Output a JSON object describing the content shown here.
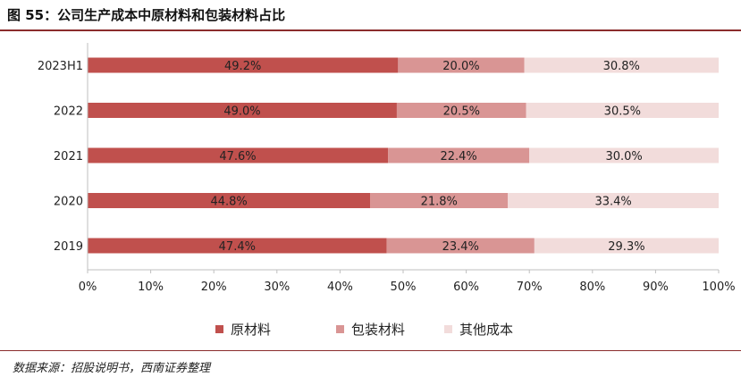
{
  "header": {
    "title": "图 55：公司生产成本中原材料和包装材料占比"
  },
  "footer": {
    "source": "数据来源：招股说明书，西南证券整理"
  },
  "chart_data": {
    "type": "bar",
    "orientation": "horizontal",
    "stacked": true,
    "categories": [
      "2023H1",
      "2022",
      "2021",
      "2020",
      "2019"
    ],
    "series": [
      {
        "name": "原材料",
        "values": [
          49.2,
          49.0,
          47.6,
          44.8,
          47.4
        ],
        "labels": [
          "49.2%",
          "49.0%",
          "47.6%",
          "44.8%",
          "47.4%"
        ],
        "color": "#C0504D"
      },
      {
        "name": "包装材料",
        "values": [
          20.0,
          20.5,
          22.4,
          21.8,
          23.4
        ],
        "labels": [
          "20.0%",
          "20.5%",
          "22.4%",
          "21.8%",
          "23.4%"
        ],
        "color": "#D99594"
      },
      {
        "name": "其他成本",
        "values": [
          30.8,
          30.5,
          30.0,
          33.4,
          29.3
        ],
        "labels": [
          "30.8%",
          "30.5%",
          "30.0%",
          "33.4%",
          "29.3%"
        ],
        "color": "#F2DCDB"
      }
    ],
    "xlim": [
      0,
      100
    ],
    "xticks": [
      "0%",
      "10%",
      "20%",
      "30%",
      "40%",
      "50%",
      "60%",
      "70%",
      "80%",
      "90%",
      "100%"
    ],
    "grid": false,
    "legend_position": "bottom"
  }
}
